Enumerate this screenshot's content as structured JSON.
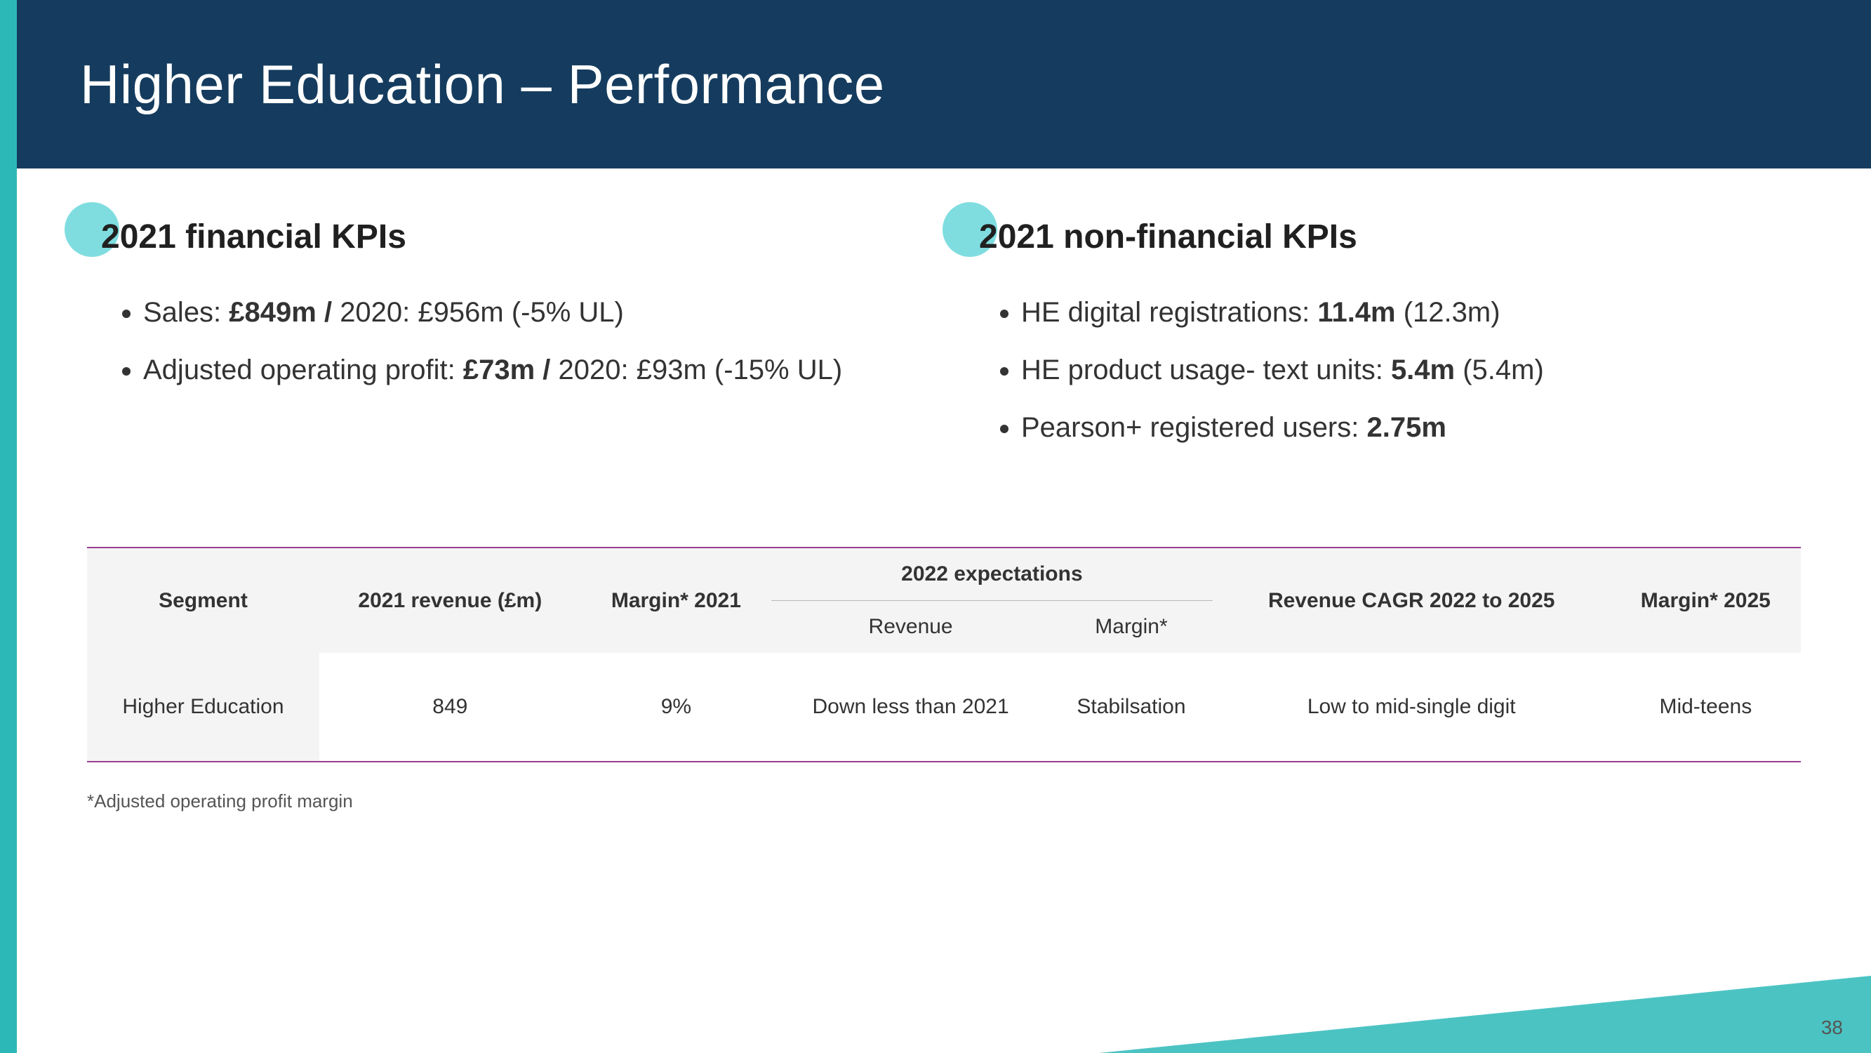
{
  "colors": {
    "header_bg": "#153c5e",
    "accent_teal": "#2db8b8",
    "dot": "#7fdde0",
    "table_border": "#9b3d91",
    "th_bg": "#f4f4f4",
    "text": "#333333"
  },
  "header": {
    "title": "Higher Education – Performance"
  },
  "kpi_left": {
    "title": "2021 financial KPIs",
    "items": [
      {
        "prefix": "Sales: ",
        "bold": "£849m / ",
        "rest": "2020: £956m (-5% UL)"
      },
      {
        "prefix": "Adjusted operating profit: ",
        "bold": "£73m / ",
        "rest": "2020: £93m (-15% UL)"
      }
    ]
  },
  "kpi_right": {
    "title": "2021 non-financial KPIs",
    "items": [
      {
        "prefix": "HE digital registrations: ",
        "bold": "11.4m ",
        "rest": "(12.3m)"
      },
      {
        "prefix": "HE product usage- text units: ",
        "bold": "5.4m ",
        "rest": "(5.4m)"
      },
      {
        "prefix": "Pearson+ registered users: ",
        "bold": "2.75m",
        "rest": ""
      }
    ]
  },
  "table": {
    "headers": {
      "segment": "Segment",
      "revenue_2021": "2021 revenue (£m)",
      "margin_2021": "Margin* 2021",
      "expectations": "2022 expectations",
      "exp_revenue": "Revenue",
      "exp_margin": "Margin*",
      "cagr": "Revenue CAGR 2022 to 2025",
      "margin_2025": "Margin* 2025"
    },
    "row": {
      "segment": "Higher Education",
      "revenue_2021": "849",
      "margin_2021": "9%",
      "exp_revenue": "Down less than 2021",
      "exp_margin": "Stabilsation",
      "cagr": "Low to mid-single digit",
      "margin_2025": "Mid-teens"
    }
  },
  "footnote": "*Adjusted operating profit margin",
  "page_number": "38"
}
